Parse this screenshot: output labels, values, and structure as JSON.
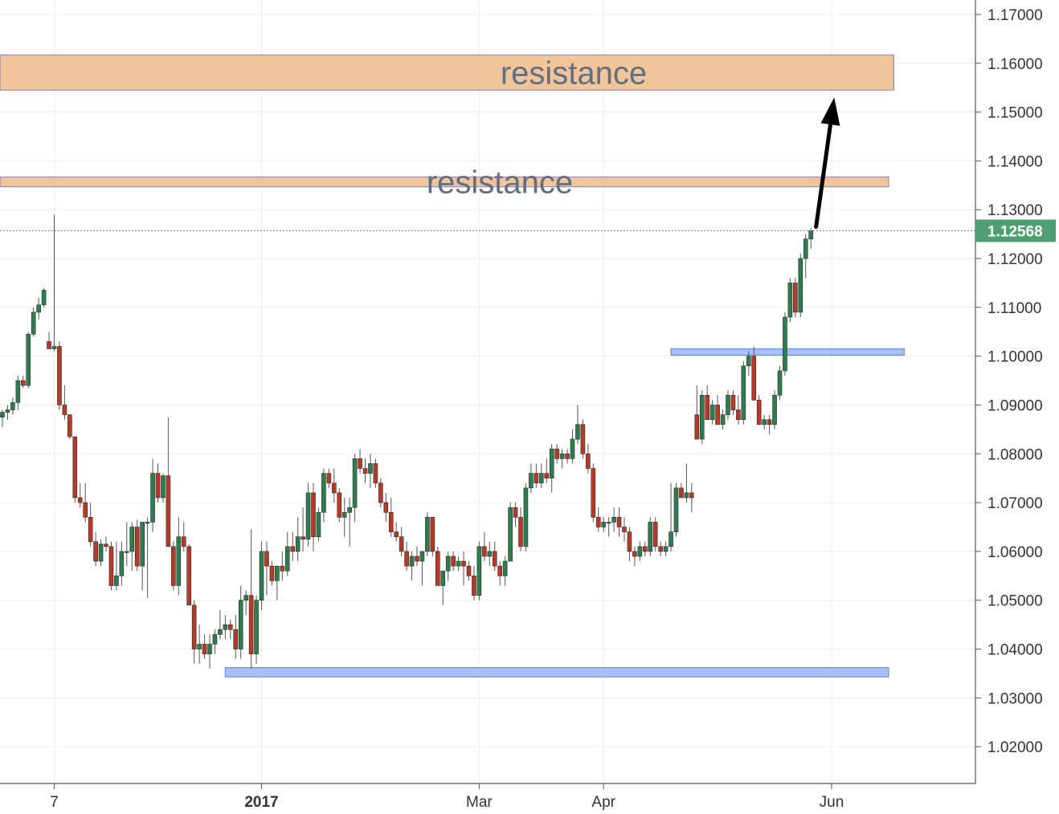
{
  "chart_data": {
    "type": "candlestick",
    "colors": {
      "up": "#2e7d4f",
      "down": "#b83a26",
      "resistance_fill": "#f2c49a",
      "resistance_stroke": "#9a8ea6",
      "support_fill": "#a8c0f5",
      "support_stroke": "#6f8fe0",
      "last_price": "#4f9f72",
      "grid": "#eeeeee",
      "arrow": "#000000"
    },
    "y_axis": {
      "ylim": [
        1.011,
        1.174
      ],
      "ticks": [
        "1.17000",
        "1.16000",
        "1.15000",
        "1.14000",
        "1.13000",
        "1.12000",
        "1.11000",
        "1.10000",
        "1.09000",
        "1.08000",
        "1.07000",
        "1.06000",
        "1.05000",
        "1.04000",
        "1.03000",
        "1.02000"
      ],
      "tick_values": [
        1.17,
        1.16,
        1.15,
        1.14,
        1.13,
        1.12,
        1.11,
        1.1,
        1.09,
        1.08,
        1.07,
        1.06,
        1.05,
        1.04,
        1.03,
        1.02
      ]
    },
    "x_axis": {
      "ticks": [
        {
          "label": "7",
          "index": 10,
          "bold": false
        },
        {
          "label": "2017",
          "index": 50,
          "bold": true
        },
        {
          "label": "Mar",
          "index": 92,
          "bold": false
        },
        {
          "label": "Apr",
          "index": 116,
          "bold": false
        },
        {
          "label": "Jun",
          "index": 160,
          "bold": false
        }
      ]
    },
    "last_price": "1.12568",
    "zones": [
      {
        "kind": "resistance",
        "label": "resistance",
        "low": 1.1545,
        "high": 1.1617,
        "start_index": -2,
        "end_index": 172
      },
      {
        "kind": "resistance",
        "label": "resistance",
        "low": 1.1347,
        "high": 1.1367,
        "start_index": -2,
        "end_index": 171
      },
      {
        "kind": "support",
        "label": "",
        "low": 1.1002,
        "high": 1.1015,
        "start_index": 129,
        "end_index": 174
      },
      {
        "kind": "support",
        "label": "",
        "low": 1.0343,
        "high": 1.0362,
        "start_index": 43,
        "end_index": 171
      }
    ],
    "arrow": {
      "from_index": 157,
      "from_price": 1.1265,
      "to_index": 160.5,
      "to_price": 1.153
    },
    "candles": [
      [
        1.0875,
        1.089,
        1.0855,
        1.0885
      ],
      [
        1.0885,
        1.09,
        1.087,
        1.089
      ],
      [
        1.089,
        1.0915,
        1.088,
        1.0905
      ],
      [
        1.0905,
        1.096,
        1.089,
        1.095
      ],
      [
        1.095,
        1.096,
        1.0935,
        1.094
      ],
      [
        1.094,
        1.105,
        1.0935,
        1.1045
      ],
      [
        1.1045,
        1.11,
        1.104,
        1.109
      ],
      [
        1.109,
        1.112,
        1.1075,
        1.1105
      ],
      [
        1.1105,
        1.114,
        1.11,
        1.1135
      ],
      [
        1.103,
        1.105,
        1.1015,
        1.1015
      ],
      [
        1.1015,
        1.129,
        1.101,
        1.102
      ],
      [
        1.102,
        1.103,
        1.089,
        1.09
      ],
      [
        1.09,
        1.094,
        1.087,
        1.088
      ],
      [
        1.088,
        1.088,
        1.083,
        1.0835
      ],
      [
        1.0835,
        1.0835,
        1.07,
        1.071
      ],
      [
        1.071,
        1.074,
        1.069,
        1.07
      ],
      [
        1.07,
        1.074,
        1.066,
        1.067
      ],
      [
        1.067,
        1.07,
        1.061,
        1.062
      ],
      [
        1.062,
        1.064,
        1.057,
        1.058
      ],
      [
        1.058,
        1.0625,
        1.057,
        1.0615
      ],
      [
        1.0615,
        1.063,
        1.06,
        1.061
      ],
      [
        1.061,
        1.062,
        1.052,
        1.053
      ],
      [
        1.053,
        1.062,
        1.052,
        1.055
      ],
      [
        1.055,
        1.062,
        1.053,
        1.06
      ],
      [
        1.06,
        1.066,
        1.057,
        1.06
      ],
      [
        1.06,
        1.066,
        1.056,
        1.065
      ],
      [
        1.065,
        1.0665,
        1.056,
        1.057
      ],
      [
        1.057,
        1.066,
        1.052,
        1.066
      ],
      [
        1.066,
        1.067,
        1.0505,
        1.066
      ],
      [
        1.066,
        1.079,
        1.064,
        1.076
      ],
      [
        1.076,
        1.078,
        1.07,
        1.071
      ],
      [
        1.071,
        1.076,
        1.07,
        1.0755
      ],
      [
        1.0755,
        1.0875,
        1.062,
        1.061
      ],
      [
        1.061,
        1.062,
        1.052,
        1.053
      ],
      [
        1.053,
        1.067,
        1.051,
        1.063
      ],
      [
        1.063,
        1.066,
        1.06,
        1.061
      ],
      [
        1.061,
        1.0615,
        1.05,
        1.049
      ],
      [
        1.049,
        1.05,
        1.037,
        1.04
      ],
      [
        1.04,
        1.045,
        1.037,
        1.041
      ],
      [
        1.041,
        1.043,
        1.038,
        1.039
      ],
      [
        1.039,
        1.043,
        1.036,
        1.041
      ],
      [
        1.041,
        1.044,
        1.039,
        1.043
      ],
      [
        1.043,
        1.048,
        1.042,
        1.044
      ],
      [
        1.044,
        1.047,
        1.042,
        1.045
      ],
      [
        1.045,
        1.046,
        1.042,
        1.044
      ],
      [
        1.044,
        1.047,
        1.038,
        1.04
      ],
      [
        1.04,
        1.053,
        1.038,
        1.05
      ],
      [
        1.05,
        1.052,
        1.047,
        1.051
      ],
      [
        1.051,
        1.0645,
        1.036,
        1.039
      ],
      [
        1.039,
        1.051,
        1.037,
        1.05
      ],
      [
        1.05,
        1.062,
        1.048,
        1.06
      ],
      [
        1.06,
        1.062,
        1.051,
        1.057
      ],
      [
        1.057,
        1.058,
        1.053,
        1.054
      ],
      [
        1.054,
        1.056,
        1.05,
        1.057
      ],
      [
        1.057,
        1.06,
        1.054,
        1.056
      ],
      [
        1.056,
        1.064,
        1.055,
        1.061
      ],
      [
        1.061,
        1.064,
        1.058,
        1.06
      ],
      [
        1.06,
        1.067,
        1.058,
        1.063
      ],
      [
        1.063,
        1.069,
        1.06,
        1.0625
      ],
      [
        1.0625,
        1.074,
        1.061,
        1.072
      ],
      [
        1.072,
        1.074,
        1.06,
        1.063
      ],
      [
        1.063,
        1.069,
        1.062,
        1.068
      ],
      [
        1.068,
        1.077,
        1.066,
        1.076
      ],
      [
        1.076,
        1.077,
        1.073,
        1.074
      ],
      [
        1.074,
        1.077,
        1.07,
        1.072
      ],
      [
        1.072,
        1.073,
        1.066,
        1.067
      ],
      [
        1.067,
        1.071,
        1.063,
        1.068
      ],
      [
        1.068,
        1.071,
        1.061,
        1.069
      ],
      [
        1.069,
        1.08,
        1.066,
        1.079
      ],
      [
        1.079,
        1.081,
        1.076,
        1.077
      ],
      [
        1.077,
        1.079,
        1.074,
        1.076
      ],
      [
        1.076,
        1.08,
        1.073,
        1.078
      ],
      [
        1.078,
        1.079,
        1.073,
        1.074
      ],
      [
        1.074,
        1.075,
        1.069,
        1.07
      ],
      [
        1.07,
        1.072,
        1.066,
        1.068
      ],
      [
        1.068,
        1.071,
        1.063,
        1.064
      ],
      [
        1.064,
        1.066,
        1.062,
        1.063
      ],
      [
        1.063,
        1.065,
        1.059,
        1.06
      ],
      [
        1.06,
        1.062,
        1.056,
        1.057
      ],
      [
        1.057,
        1.06,
        1.054,
        1.059
      ],
      [
        1.059,
        1.061,
        1.057,
        1.058
      ],
      [
        1.058,
        1.06,
        1.053,
        1.06
      ],
      [
        1.06,
        1.068,
        1.059,
        1.067
      ],
      [
        1.067,
        1.067,
        1.059,
        1.06
      ],
      [
        1.06,
        1.061,
        1.053,
        1.053
      ],
      [
        1.053,
        1.056,
        1.049,
        1.056
      ],
      [
        1.056,
        1.06,
        1.054,
        1.059
      ],
      [
        1.059,
        1.06,
        1.056,
        1.057
      ],
      [
        1.057,
        1.059,
        1.056,
        1.058
      ],
      [
        1.058,
        1.06,
        1.053,
        1.057
      ],
      [
        1.057,
        1.058,
        1.054,
        1.055
      ],
      [
        1.055,
        1.057,
        1.05,
        1.051
      ],
      [
        1.051,
        1.062,
        1.05,
        1.061
      ],
      [
        1.061,
        1.064,
        1.058,
        1.059
      ],
      [
        1.059,
        1.062,
        1.057,
        1.06
      ],
      [
        1.06,
        1.062,
        1.056,
        1.057
      ],
      [
        1.057,
        1.058,
        1.053,
        1.055
      ],
      [
        1.055,
        1.059,
        1.053,
        1.058
      ],
      [
        1.058,
        1.07,
        1.058,
        1.069
      ],
      [
        1.069,
        1.07,
        1.065,
        1.067
      ],
      [
        1.067,
        1.069,
        1.06,
        1.061
      ],
      [
        1.061,
        1.074,
        1.06,
        1.073
      ],
      [
        1.073,
        1.078,
        1.072,
        1.076
      ],
      [
        1.076,
        1.078,
        1.073,
        1.074
      ],
      [
        1.074,
        1.078,
        1.073,
        1.076
      ],
      [
        1.076,
        1.079,
        1.074,
        1.075
      ],
      [
        1.075,
        1.082,
        1.072,
        1.081
      ],
      [
        1.081,
        1.082,
        1.078,
        1.079
      ],
      [
        1.079,
        1.081,
        1.077,
        1.08
      ],
      [
        1.08,
        1.081,
        1.078,
        1.079
      ],
      [
        1.079,
        1.085,
        1.078,
        1.083
      ],
      [
        1.083,
        1.09,
        1.082,
        1.086
      ],
      [
        1.086,
        1.087,
        1.079,
        1.08
      ],
      [
        1.08,
        1.082,
        1.076,
        1.077
      ],
      [
        1.077,
        1.078,
        1.066,
        1.067
      ],
      [
        1.067,
        1.069,
        1.064,
        1.065
      ],
      [
        1.065,
        1.067,
        1.064,
        1.066
      ],
      [
        1.066,
        1.067,
        1.063,
        1.066
      ],
      [
        1.066,
        1.069,
        1.064,
        1.067
      ],
      [
        1.067,
        1.069,
        1.063,
        1.065
      ],
      [
        1.065,
        1.067,
        1.062,
        1.064
      ],
      [
        1.064,
        1.065,
        1.058,
        1.06
      ],
      [
        1.06,
        1.061,
        1.057,
        1.059
      ],
      [
        1.059,
        1.062,
        1.058,
        1.061
      ],
      [
        1.061,
        1.062,
        1.059,
        1.06
      ],
      [
        1.06,
        1.067,
        1.059,
        1.066
      ],
      [
        1.066,
        1.067,
        1.06,
        1.061
      ],
      [
        1.061,
        1.062,
        1.059,
        1.06
      ],
      [
        1.06,
        1.062,
        1.059,
        1.061
      ],
      [
        1.061,
        1.074,
        1.06,
        1.064
      ],
      [
        1.064,
        1.074,
        1.063,
        1.073
      ],
      [
        1.073,
        1.074,
        1.071,
        1.071
      ],
      [
        1.071,
        1.078,
        1.07,
        1.072
      ],
      [
        1.072,
        1.074,
        1.068,
        1.071
      ],
      [
        1.088,
        1.094,
        1.084,
        1.083
      ],
      [
        1.083,
        1.093,
        1.082,
        1.092
      ],
      [
        1.092,
        1.094,
        1.088,
        1.087
      ],
      [
        1.087,
        1.091,
        1.086,
        1.09
      ],
      [
        1.09,
        1.092,
        1.086,
        1.086
      ],
      [
        1.086,
        1.089,
        1.085,
        1.088
      ],
      [
        1.088,
        1.093,
        1.087,
        1.092
      ],
      [
        1.092,
        1.093,
        1.088,
        1.089
      ],
      [
        1.089,
        1.092,
        1.086,
        1.087
      ],
      [
        1.087,
        1.099,
        1.086,
        1.098
      ],
      [
        1.098,
        1.101,
        1.096,
        1.1
      ],
      [
        1.1,
        1.102,
        1.092,
        1.091
      ],
      [
        1.091,
        1.092,
        1.086,
        1.086
      ],
      [
        1.086,
        1.088,
        1.085,
        1.087
      ],
      [
        1.087,
        1.088,
        1.084,
        1.086
      ],
      [
        1.086,
        1.093,
        1.085,
        1.092
      ],
      [
        1.092,
        1.098,
        1.091,
        1.097
      ],
      [
        1.097,
        1.109,
        1.096,
        1.108
      ],
      [
        1.108,
        1.116,
        1.107,
        1.115
      ],
      [
        1.115,
        1.116,
        1.108,
        1.109
      ],
      [
        1.109,
        1.121,
        1.108,
        1.12
      ],
      [
        1.12,
        1.125,
        1.116,
        1.124
      ],
      [
        1.124,
        1.1262,
        1.122,
        1.1257
      ]
    ]
  }
}
